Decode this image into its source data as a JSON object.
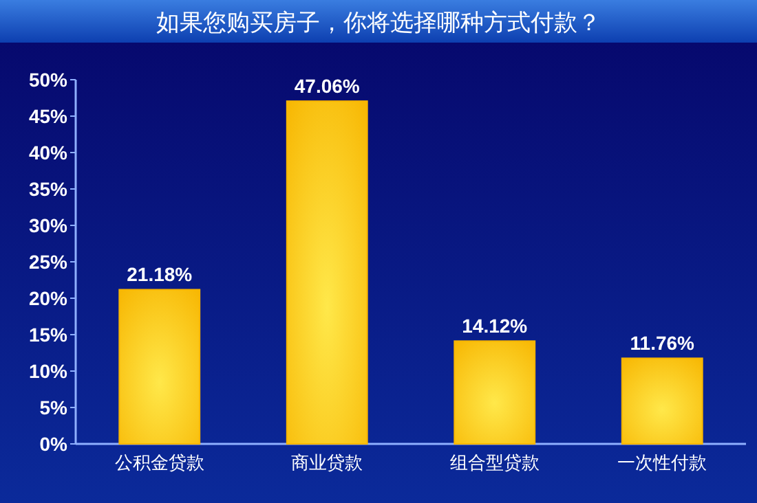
{
  "chart_data": {
    "type": "bar",
    "title": "如果您购买房子，你将选择哪种方式付款？",
    "categories": [
      "公积金贷款",
      "商业贷款",
      "组合型贷款",
      "一次性付款"
    ],
    "values": [
      21.18,
      47.06,
      14.12,
      11.76
    ],
    "value_labels": [
      "21.18%",
      "47.06%",
      "14.12%",
      "11.76%"
    ],
    "color": "#f7b500",
    "ylim": [
      0,
      50
    ],
    "yticks": [
      {
        "value": 0,
        "label": "0%"
      },
      {
        "value": 5,
        "label": "5%"
      },
      {
        "value": 10,
        "label": "10%"
      },
      {
        "value": 15,
        "label": "15%"
      },
      {
        "value": 20,
        "label": "20%"
      },
      {
        "value": 25,
        "label": "25%"
      },
      {
        "value": 30,
        "label": "30%"
      },
      {
        "value": 35,
        "label": "35%"
      },
      {
        "value": 40,
        "label": "40%"
      },
      {
        "value": 45,
        "label": "45%"
      },
      {
        "value": 50,
        "label": "50%"
      }
    ],
    "grid": false
  }
}
